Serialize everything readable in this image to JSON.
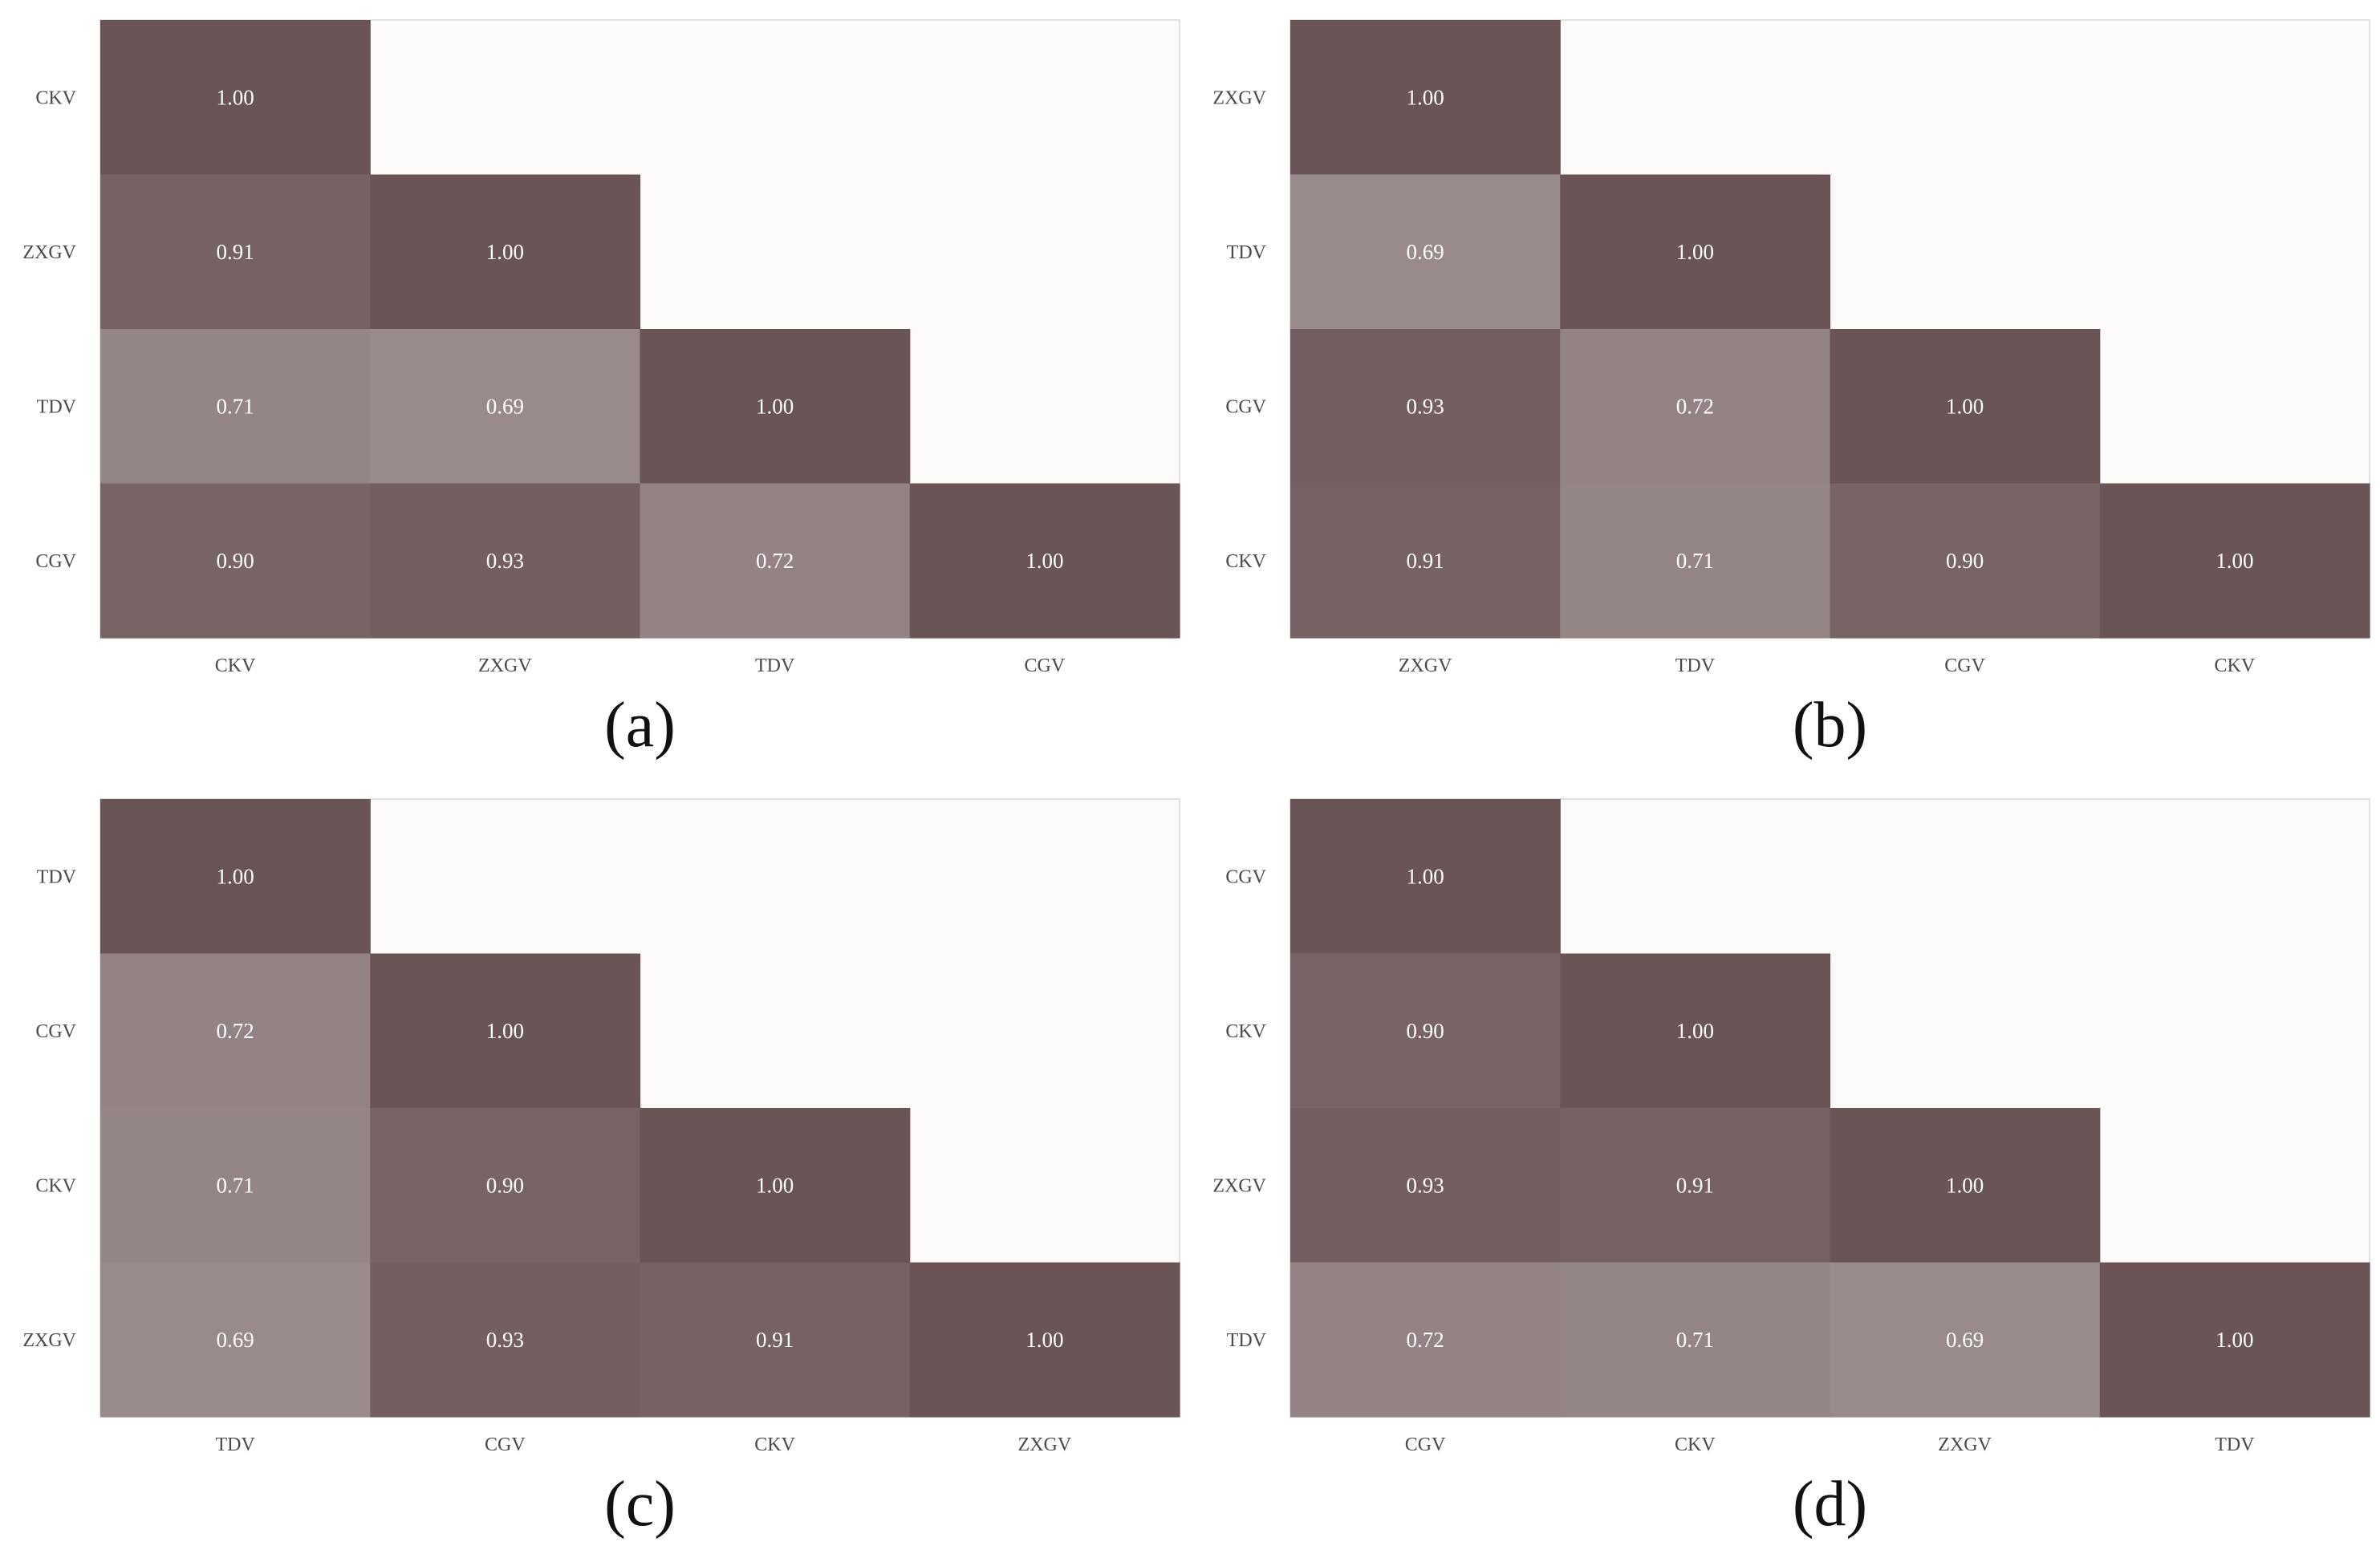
{
  "colors": {
    "high": "#6b5455",
    "low": "#9a8b8b",
    "background": "#fcfbfa",
    "frame": "#d8d8d8"
  },
  "chart_data": [
    {
      "type": "heatmap",
      "panel_label": "(a)",
      "x_categories": [
        "CKV",
        "ZXGV",
        "TDV",
        "CGV"
      ],
      "y_categories": [
        "CKV",
        "ZXGV",
        "TDV",
        "CGV"
      ],
      "matrix": [
        [
          1.0,
          null,
          null,
          null
        ],
        [
          0.91,
          1.0,
          null,
          null
        ],
        [
          0.71,
          0.69,
          1.0,
          null
        ],
        [
          0.9,
          0.93,
          0.72,
          1.0
        ]
      ],
      "value_labels": [
        [
          "1.00",
          "",
          "",
          ""
        ],
        [
          "0.91",
          "1.00",
          "",
          ""
        ],
        [
          "0.71",
          "0.69",
          "1.00",
          ""
        ],
        [
          "0.90",
          "0.93",
          "0.72",
          "1.00"
        ]
      ],
      "grid": false,
      "legend": "none"
    },
    {
      "type": "heatmap",
      "panel_label": "(b)",
      "x_categories": [
        "ZXGV",
        "TDV",
        "CGV",
        "CKV"
      ],
      "y_categories": [
        "ZXGV",
        "TDV",
        "CGV",
        "CKV"
      ],
      "matrix": [
        [
          1.0,
          null,
          null,
          null
        ],
        [
          0.69,
          1.0,
          null,
          null
        ],
        [
          0.93,
          0.72,
          1.0,
          null
        ],
        [
          0.91,
          0.71,
          0.9,
          1.0
        ]
      ],
      "value_labels": [
        [
          "1.00",
          "",
          "",
          ""
        ],
        [
          "0.69",
          "1.00",
          "",
          ""
        ],
        [
          "0.93",
          "0.72",
          "1.00",
          ""
        ],
        [
          "0.91",
          "0.71",
          "0.90",
          "1.00"
        ]
      ],
      "grid": false,
      "legend": "none"
    },
    {
      "type": "heatmap",
      "panel_label": "(c)",
      "x_categories": [
        "TDV",
        "CGV",
        "CKV",
        "ZXGV"
      ],
      "y_categories": [
        "TDV",
        "CGV",
        "CKV",
        "ZXGV"
      ],
      "matrix": [
        [
          1.0,
          null,
          null,
          null
        ],
        [
          0.72,
          1.0,
          null,
          null
        ],
        [
          0.71,
          0.9,
          1.0,
          null
        ],
        [
          0.69,
          0.93,
          0.91,
          1.0
        ]
      ],
      "value_labels": [
        [
          "1.00",
          "",
          "",
          ""
        ],
        [
          "0.72",
          "1.00",
          "",
          ""
        ],
        [
          "0.71",
          "0.90",
          "1.00",
          ""
        ],
        [
          "0.69",
          "0.93",
          "0.91",
          "1.00"
        ]
      ],
      "grid": false,
      "legend": "none"
    },
    {
      "type": "heatmap",
      "panel_label": "(d)",
      "x_categories": [
        "CGV",
        "CKV",
        "ZXGV",
        "TDV"
      ],
      "y_categories": [
        "CGV",
        "CKV",
        "ZXGV",
        "TDV"
      ],
      "matrix": [
        [
          1.0,
          null,
          null,
          null
        ],
        [
          0.9,
          1.0,
          null,
          null
        ],
        [
          0.93,
          0.91,
          1.0,
          null
        ],
        [
          0.72,
          0.71,
          0.69,
          1.0
        ]
      ],
      "value_labels": [
        [
          "1.00",
          "",
          "",
          ""
        ],
        [
          "0.90",
          "1.00",
          "",
          ""
        ],
        [
          "0.93",
          "0.91",
          "1.00",
          ""
        ],
        [
          "0.72",
          "0.71",
          "0.69",
          "1.00"
        ]
      ],
      "grid": false,
      "legend": "none"
    }
  ]
}
